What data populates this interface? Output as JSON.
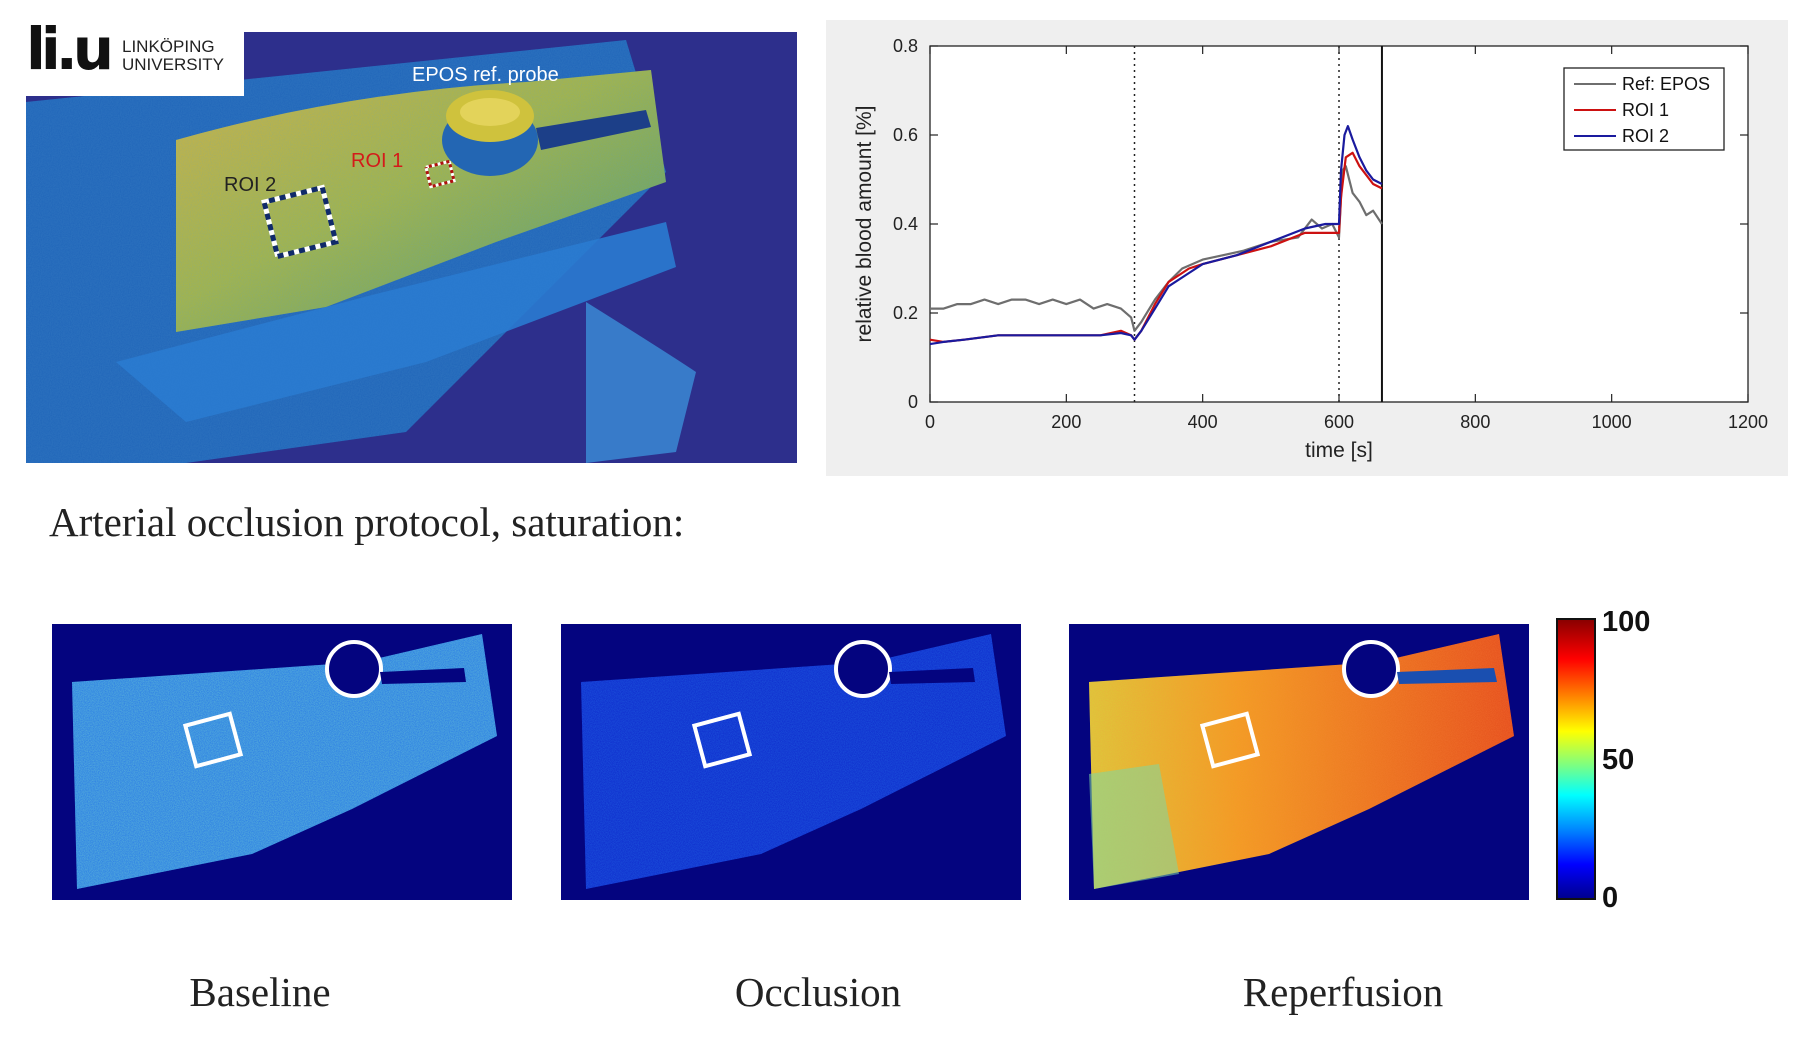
{
  "logo": {
    "mark": "li.u",
    "line1": "LINKÖPING",
    "line2": "UNIVERSITY"
  },
  "photo": {
    "probe_label": "EPOS ref. probe",
    "roi1_label": "ROI 1",
    "roi2_label": "ROI 2"
  },
  "chart_data": {
    "type": "line",
    "title": "",
    "xlabel": "time [s]",
    "ylabel": "relative blood amount [%]",
    "xlim": [
      0,
      1200
    ],
    "ylim": [
      0,
      0.8
    ],
    "xticks": [
      "0",
      "200",
      "400",
      "600",
      "800",
      "1000",
      "1200"
    ],
    "yticks": [
      "0",
      "0.2",
      "0.4",
      "0.6",
      "0.8"
    ],
    "legend_position": "top-right",
    "vlines_dotted": [
      300,
      600
    ],
    "vline_solid": 663,
    "series": [
      {
        "name": "Ref: EPOS",
        "color": "#6e6e6e",
        "x": [
          0,
          20,
          40,
          60,
          80,
          100,
          120,
          140,
          160,
          180,
          200,
          220,
          240,
          260,
          280,
          295,
          300,
          310,
          330,
          350,
          370,
          400,
          430,
          460,
          500,
          540,
          560,
          575,
          590,
          600,
          605,
          610,
          620,
          630,
          640,
          650,
          663
        ],
        "y": [
          0.21,
          0.21,
          0.22,
          0.22,
          0.23,
          0.22,
          0.23,
          0.23,
          0.22,
          0.23,
          0.22,
          0.23,
          0.21,
          0.22,
          0.21,
          0.19,
          0.16,
          0.18,
          0.23,
          0.27,
          0.3,
          0.32,
          0.33,
          0.34,
          0.36,
          0.37,
          0.41,
          0.39,
          0.4,
          0.37,
          0.52,
          0.53,
          0.47,
          0.45,
          0.42,
          0.43,
          0.4
        ]
      },
      {
        "name": "ROI 1",
        "color": "#cc1111",
        "x": [
          0,
          20,
          50,
          100,
          150,
          200,
          250,
          280,
          295,
          300,
          310,
          330,
          350,
          380,
          400,
          450,
          500,
          550,
          580,
          600,
          603,
          610,
          620,
          630,
          640,
          650,
          663
        ],
        "y": [
          0.14,
          0.135,
          0.14,
          0.15,
          0.15,
          0.15,
          0.15,
          0.16,
          0.15,
          0.14,
          0.16,
          0.22,
          0.27,
          0.3,
          0.31,
          0.33,
          0.35,
          0.38,
          0.38,
          0.38,
          0.46,
          0.55,
          0.56,
          0.53,
          0.51,
          0.49,
          0.48
        ]
      },
      {
        "name": "ROI 2",
        "color": "#1a1a9e",
        "x": [
          0,
          20,
          50,
          100,
          150,
          200,
          250,
          280,
          295,
          300,
          310,
          330,
          350,
          380,
          400,
          450,
          500,
          550,
          580,
          600,
          603,
          608,
          613,
          620,
          630,
          640,
          650,
          663
        ],
        "y": [
          0.13,
          0.135,
          0.14,
          0.15,
          0.15,
          0.15,
          0.15,
          0.155,
          0.15,
          0.14,
          0.16,
          0.21,
          0.26,
          0.29,
          0.31,
          0.33,
          0.36,
          0.39,
          0.4,
          0.4,
          0.52,
          0.6,
          0.62,
          0.59,
          0.55,
          0.52,
          0.5,
          0.49
        ]
      }
    ]
  },
  "heading": "Arterial occlusion protocol, saturation:",
  "colorbar": {
    "max": "100",
    "mid": "50",
    "min": "0"
  },
  "captions": {
    "baseline": "Baseline",
    "occlusion": "Occlusion",
    "reperfusion": "Reperfusion"
  }
}
